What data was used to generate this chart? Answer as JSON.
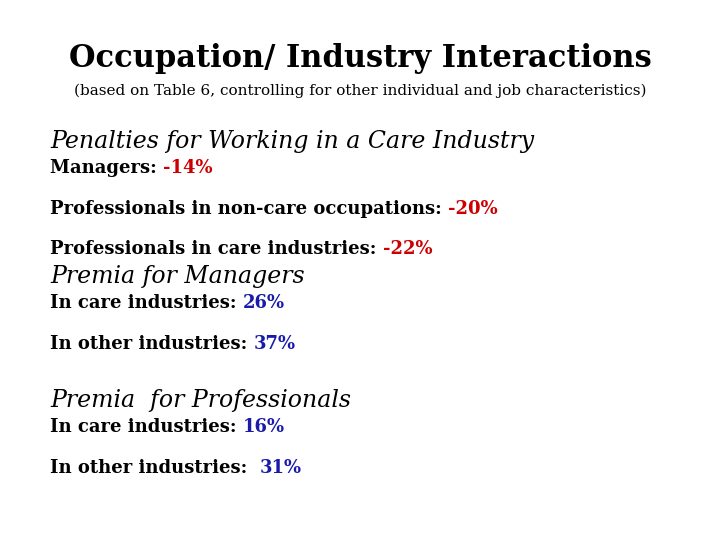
{
  "title": "Occupation/ Industry Interactions",
  "subtitle": "(based on Table 6, controlling for other individual and job characteristics)",
  "background_color": "#ffffff",
  "title_fontsize": 22,
  "subtitle_fontsize": 11,
  "section_header_fontsize": 17,
  "body_fontsize": 13,
  "text_color_black": "#000000",
  "text_color_red": "#cc0000",
  "text_color_blue": "#1a1aaa",
  "sections": [
    {
      "header": "Penalties for Working in a Care Industry",
      "lines": [
        {
          "prefix": "Managers: ",
          "value": "-14%",
          "color": "red"
        },
        {
          "prefix": "Professionals in non-care occupations: ",
          "value": "-20%",
          "color": "red"
        },
        {
          "prefix": "Professionals in care industries: ",
          "value": "-22%",
          "color": "red"
        }
      ]
    },
    {
      "header": "Premia for Managers",
      "lines": [
        {
          "prefix": "In care industries: ",
          "value": "26%",
          "color": "blue"
        },
        {
          "prefix": "In other industries: ",
          "value": "37%",
          "color": "blue"
        }
      ]
    },
    {
      "header": "Premia  for Professionals",
      "lines": [
        {
          "prefix": "In care industries: ",
          "value": "16%",
          "color": "blue"
        },
        {
          "prefix": "In other industries:  ",
          "value": "31%",
          "color": "blue"
        }
      ]
    }
  ]
}
